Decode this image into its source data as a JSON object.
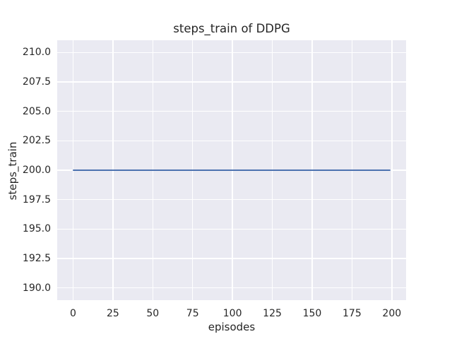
{
  "chart_data": {
    "type": "line",
    "title": "steps_train of DDPG",
    "xlabel": "episodes",
    "ylabel": "steps_train",
    "x_ticks": [
      "0",
      "25",
      "50",
      "75",
      "100",
      "125",
      "150",
      "175",
      "200"
    ],
    "y_ticks": [
      "190.0",
      "192.5",
      "195.0",
      "197.5",
      "200.0",
      "202.5",
      "205.0",
      "207.5",
      "210.0"
    ],
    "xlim": [
      -9.95,
      208.95
    ],
    "ylim": [
      188.95,
      211.05
    ],
    "grid": true,
    "legend": "none",
    "style": {
      "plot_bg": "#eaeaf2",
      "grid_color": "#ffffff",
      "text_color": "#262626",
      "line_color": "#4c72b0"
    },
    "series": [
      {
        "name": "steps_train",
        "color": "#4c72b0",
        "x": [
          0,
          199
        ],
        "y": [
          200,
          200
        ]
      }
    ]
  }
}
